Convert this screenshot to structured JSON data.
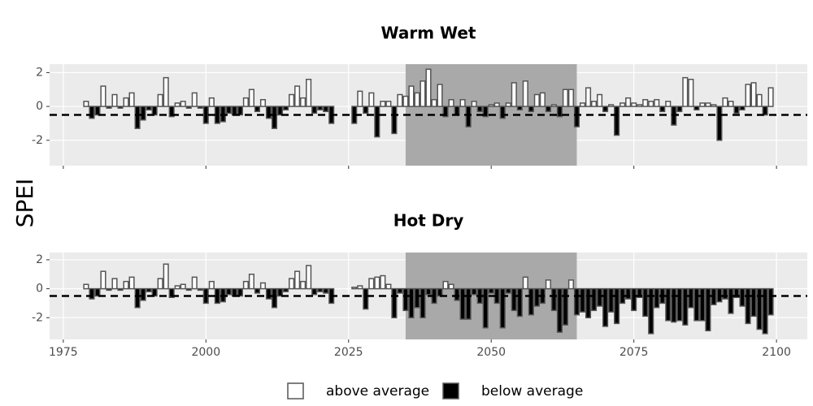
{
  "chart_data": {
    "type": "bar",
    "ylabel": "SPEI",
    "legend": [
      {
        "name": "above average",
        "color": "#ffffff"
      },
      {
        "name": "below average",
        "color": "#000000"
      }
    ],
    "bar_stroke": "#555555",
    "background": "#ebebeb",
    "highlight_color": "#a9a9a9",
    "grid": true,
    "reference_line": -0.5,
    "highlight": [
      2035,
      2065
    ],
    "xlim": [
      1972.6,
      2105.4
    ],
    "xticks": [
      1975,
      2000,
      2025,
      2050,
      2075,
      2100
    ],
    "x": [
      1979,
      1980,
      1981,
      1982,
      1983,
      1984,
      1985,
      1986,
      1987,
      1988,
      1989,
      1990,
      1991,
      1992,
      1993,
      1994,
      1995,
      1996,
      1997,
      1998,
      1999,
      2000,
      2001,
      2002,
      2003,
      2004,
      2005,
      2006,
      2007,
      2008,
      2009,
      2010,
      2011,
      2012,
      2013,
      2014,
      2015,
      2016,
      2017,
      2018,
      2019,
      2020,
      2021,
      2022,
      2023,
      2024,
      2025,
      2026,
      2027,
      2028,
      2029,
      2030,
      2031,
      2032,
      2033,
      2034,
      2035,
      2036,
      2037,
      2038,
      2039,
      2040,
      2041,
      2042,
      2043,
      2044,
      2045,
      2046,
      2047,
      2048,
      2049,
      2050,
      2051,
      2052,
      2053,
      2054,
      2055,
      2056,
      2057,
      2058,
      2059,
      2060,
      2061,
      2062,
      2063,
      2064,
      2065,
      2066,
      2067,
      2068,
      2069,
      2070,
      2071,
      2072,
      2073,
      2074,
      2075,
      2076,
      2077,
      2078,
      2079,
      2080,
      2081,
      2082,
      2083,
      2084,
      2085,
      2086,
      2087,
      2088,
      2089,
      2090,
      2091,
      2092,
      2093,
      2094,
      2095,
      2096,
      2097,
      2098,
      2099
    ],
    "panels": [
      {
        "title": "Warm Wet",
        "ylim": [
          -3.5,
          2.5
        ],
        "yticks": [
          -2,
          0,
          2
        ],
        "values": [
          0.3,
          -0.7,
          -0.5,
          1.2,
          -0.1,
          0.7,
          -0.1,
          0.5,
          0.8,
          -1.3,
          -0.8,
          -0.2,
          -0.5,
          0.7,
          1.7,
          -0.6,
          0.2,
          0.3,
          -0.1,
          0.8,
          -0.1,
          -1.0,
          0.5,
          -1.0,
          -0.9,
          -0.4,
          -0.5,
          -0.5,
          0.5,
          1.0,
          -0.3,
          0.4,
          -0.7,
          -1.3,
          -0.5,
          -0.2,
          0.7,
          1.2,
          0.5,
          1.6,
          -0.4,
          -0.2,
          -0.3,
          -1.0,
          null,
          null,
          null,
          -1.0,
          0.9,
          -0.4,
          0.8,
          -1.8,
          0.3,
          0.3,
          -1.6,
          0.7,
          0.6,
          1.2,
          0.8,
          1.5,
          2.2,
          0.4,
          1.3,
          -0.6,
          0.4,
          -0.5,
          0.4,
          -1.2,
          0.3,
          -0.3,
          -0.6,
          0.1,
          0.2,
          -0.7,
          0.2,
          1.4,
          -0.2,
          1.5,
          -0.3,
          0.7,
          0.8,
          -0.3,
          0.1,
          -0.6,
          1.0,
          1.0,
          -1.2,
          0.2,
          1.1,
          0.3,
          0.7,
          -0.3,
          0.1,
          -1.7,
          0.2,
          0.5,
          0.2,
          0.1,
          0.4,
          0.3,
          0.4,
          -0.3,
          0.3,
          -1.1,
          -0.3,
          1.7,
          1.6,
          -0.2,
          0.2,
          0.2,
          0.1,
          -2.0,
          0.5,
          0.3,
          -0.4,
          -0.2,
          1.3,
          1.4,
          0.7,
          -0.5,
          1.1
        ]
      },
      {
        "title": "Hot Dry",
        "ylim": [
          -3.5,
          2.5
        ],
        "yticks": [
          -2,
          0,
          2
        ],
        "values": [
          0.3,
          -0.7,
          -0.5,
          1.2,
          -0.1,
          0.7,
          -0.1,
          0.5,
          0.8,
          -1.3,
          -0.8,
          -0.2,
          -0.5,
          0.7,
          1.7,
          -0.6,
          0.2,
          0.3,
          -0.1,
          0.8,
          -0.1,
          -1.0,
          0.5,
          -1.0,
          -0.9,
          -0.4,
          -0.5,
          -0.5,
          0.5,
          1.0,
          -0.3,
          0.4,
          -0.7,
          -1.3,
          -0.5,
          -0.2,
          0.7,
          1.2,
          0.5,
          1.6,
          -0.4,
          -0.2,
          -0.3,
          -1.0,
          null,
          null,
          null,
          0.1,
          0.2,
          -1.4,
          0.7,
          0.8,
          0.9,
          0.3,
          -2.0,
          -0.3,
          -1.5,
          -2.0,
          -1.3,
          -2.0,
          -0.4,
          -1.0,
          -0.5,
          0.5,
          0.3,
          -0.8,
          -2.1,
          -2.1,
          -0.4,
          -1.0,
          -2.7,
          -0.3,
          -1.0,
          -2.7,
          -0.3,
          -1.5,
          -1.9,
          0.8,
          -1.8,
          -1.2,
          -1.0,
          0.6,
          -1.5,
          -3.0,
          -2.5,
          0.6,
          -1.8,
          -1.6,
          -2.0,
          -1.5,
          -1.2,
          -2.6,
          -1.6,
          -2.4,
          -1.0,
          -0.7,
          -1.5,
          -0.6,
          -1.9,
          -3.1,
          -1.3,
          -1.0,
          -2.2,
          -2.3,
          -2.2,
          -2.5,
          -1.3,
          -2.2,
          -2.2,
          -2.9,
          -1.1,
          -0.9,
          -0.7,
          -1.7,
          -0.6,
          -1.2,
          -2.4,
          -1.9,
          -2.8,
          -3.1,
          -1.8
        ]
      }
    ]
  }
}
